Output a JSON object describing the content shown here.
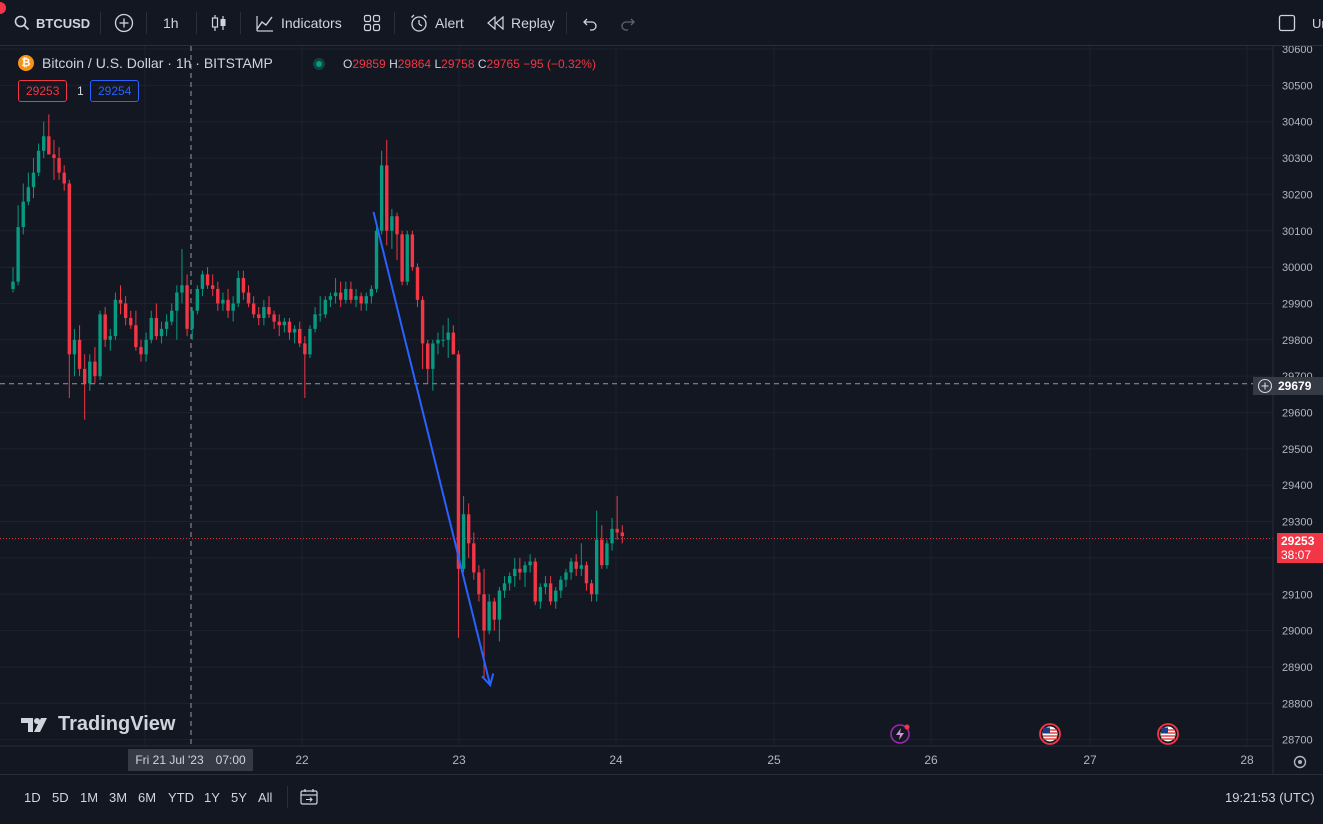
{
  "toolbar": {
    "symbol": "BTCUSD",
    "interval": "1h",
    "indicators_label": "Indicators",
    "alert_label": "Alert",
    "replay_label": "Replay",
    "right_cut_label": "Ur"
  },
  "legend": {
    "coin_glyph": "₿",
    "title": "Bitcoin / U.S. Dollar · 1h · BITSTAMP",
    "open_label": "O",
    "open": "29859",
    "high_label": "H",
    "high": "29864",
    "low_label": "L",
    "low": "29758",
    "close_label": "C",
    "close": "29765",
    "change": "−95 (−0.32%)",
    "sell_price": "29253",
    "spread": "1",
    "buy_price": "29254"
  },
  "price_axis": {
    "ticks": [
      "30600",
      "30500",
      "30400",
      "30300",
      "30200",
      "30100",
      "30000",
      "29900",
      "29800",
      "29700",
      "29600",
      "29500",
      "29400",
      "29300",
      "29200",
      "29100",
      "29000",
      "28900",
      "28800",
      "28700"
    ],
    "crosshair_price": "29679",
    "last_price": "29253",
    "countdown": "38:07"
  },
  "time_axis": {
    "ticks": [
      "22",
      "23",
      "24",
      "25",
      "26",
      "27",
      "28"
    ],
    "crosshair_date": "Fri 21 Jul '23",
    "crosshair_time": "07:00"
  },
  "brand": "TradingView",
  "bottom_bar": {
    "ranges": [
      "1D",
      "5D",
      "1M",
      "3M",
      "6M",
      "YTD",
      "1Y",
      "5Y",
      "All"
    ],
    "clock": "19:21:53 (UTC)"
  },
  "colors": {
    "up": "#089981",
    "down": "#f23645",
    "drawing": "#2962ff",
    "background": "#131722"
  },
  "chart_data": {
    "type": "candlestick",
    "title": "Bitcoin / U.S. Dollar · 1h · BITSTAMP",
    "ylim": [
      28680,
      30620
    ],
    "x_labels": [
      "22",
      "23",
      "24",
      "25",
      "26",
      "27",
      "28"
    ],
    "candles": [
      {
        "o": 29940,
        "h": 30000,
        "l": 29930,
        "c": 29960
      },
      {
        "o": 29960,
        "h": 30170,
        "l": 29950,
        "c": 30110
      },
      {
        "o": 30110,
        "h": 30230,
        "l": 30090,
        "c": 30180
      },
      {
        "o": 30180,
        "h": 30260,
        "l": 30170,
        "c": 30220
      },
      {
        "o": 30220,
        "h": 30300,
        "l": 30190,
        "c": 30260
      },
      {
        "o": 30260,
        "h": 30340,
        "l": 30250,
        "c": 30320
      },
      {
        "o": 30320,
        "h": 30400,
        "l": 30300,
        "c": 30360
      },
      {
        "o": 30360,
        "h": 30420,
        "l": 30310,
        "c": 30310
      },
      {
        "o": 30310,
        "h": 30350,
        "l": 30240,
        "c": 30300
      },
      {
        "o": 30300,
        "h": 30330,
        "l": 30240,
        "c": 30260
      },
      {
        "o": 30260,
        "h": 30280,
        "l": 30210,
        "c": 30230
      },
      {
        "o": 30230,
        "h": 30240,
        "l": 29640,
        "c": 29760
      },
      {
        "o": 29760,
        "h": 29830,
        "l": 29700,
        "c": 29800
      },
      {
        "o": 29800,
        "h": 29840,
        "l": 29700,
        "c": 29720
      },
      {
        "o": 29720,
        "h": 29760,
        "l": 29580,
        "c": 29680
      },
      {
        "o": 29680,
        "h": 29760,
        "l": 29660,
        "c": 29740
      },
      {
        "o": 29740,
        "h": 29780,
        "l": 29680,
        "c": 29700
      },
      {
        "o": 29700,
        "h": 29880,
        "l": 29690,
        "c": 29870
      },
      {
        "o": 29870,
        "h": 29890,
        "l": 29780,
        "c": 29800
      },
      {
        "o": 29800,
        "h": 29830,
        "l": 29770,
        "c": 29810
      },
      {
        "o": 29810,
        "h": 29930,
        "l": 29800,
        "c": 29910
      },
      {
        "o": 29910,
        "h": 29950,
        "l": 29870,
        "c": 29900
      },
      {
        "o": 29900,
        "h": 29920,
        "l": 29840,
        "c": 29860
      },
      {
        "o": 29860,
        "h": 29880,
        "l": 29830,
        "c": 29840
      },
      {
        "o": 29840,
        "h": 29880,
        "l": 29770,
        "c": 29780
      },
      {
        "o": 29780,
        "h": 29800,
        "l": 29740,
        "c": 29760
      },
      {
        "o": 29760,
        "h": 29820,
        "l": 29740,
        "c": 29800
      },
      {
        "o": 29800,
        "h": 29880,
        "l": 29790,
        "c": 29860
      },
      {
        "o": 29860,
        "h": 29900,
        "l": 29800,
        "c": 29810
      },
      {
        "o": 29810,
        "h": 29850,
        "l": 29790,
        "c": 29830
      },
      {
        "o": 29830,
        "h": 29870,
        "l": 29810,
        "c": 29850
      },
      {
        "o": 29850,
        "h": 29900,
        "l": 29840,
        "c": 29880
      },
      {
        "o": 29880,
        "h": 29950,
        "l": 29800,
        "c": 29930
      },
      {
        "o": 29930,
        "h": 30050,
        "l": 29900,
        "c": 29950
      },
      {
        "o": 29950,
        "h": 29980,
        "l": 29810,
        "c": 29830
      },
      {
        "o": 29830,
        "h": 29890,
        "l": 29800,
        "c": 29880
      },
      {
        "o": 29880,
        "h": 29950,
        "l": 29870,
        "c": 29940
      },
      {
        "o": 29940,
        "h": 29990,
        "l": 29920,
        "c": 29980
      },
      {
        "o": 29980,
        "h": 30000,
        "l": 29940,
        "c": 29950
      },
      {
        "o": 29950,
        "h": 29980,
        "l": 29920,
        "c": 29940
      },
      {
        "o": 29940,
        "h": 29960,
        "l": 29880,
        "c": 29900
      },
      {
        "o": 29900,
        "h": 29930,
        "l": 29880,
        "c": 29910
      },
      {
        "o": 29910,
        "h": 29940,
        "l": 29860,
        "c": 29880
      },
      {
        "o": 29880,
        "h": 29920,
        "l": 29850,
        "c": 29900
      },
      {
        "o": 29900,
        "h": 29990,
        "l": 29890,
        "c": 29970
      },
      {
        "o": 29970,
        "h": 29990,
        "l": 29910,
        "c": 29930
      },
      {
        "o": 29930,
        "h": 29950,
        "l": 29890,
        "c": 29900
      },
      {
        "o": 29900,
        "h": 29920,
        "l": 29860,
        "c": 29870
      },
      {
        "o": 29870,
        "h": 29890,
        "l": 29840,
        "c": 29860
      },
      {
        "o": 29860,
        "h": 29910,
        "l": 29840,
        "c": 29890
      },
      {
        "o": 29890,
        "h": 29920,
        "l": 29860,
        "c": 29870
      },
      {
        "o": 29870,
        "h": 29880,
        "l": 29830,
        "c": 29850
      },
      {
        "o": 29850,
        "h": 29870,
        "l": 29810,
        "c": 29840
      },
      {
        "o": 29840,
        "h": 29860,
        "l": 29820,
        "c": 29850
      },
      {
        "o": 29850,
        "h": 29860,
        "l": 29800,
        "c": 29820
      },
      {
        "o": 29820,
        "h": 29840,
        "l": 29790,
        "c": 29830
      },
      {
        "o": 29830,
        "h": 29850,
        "l": 29780,
        "c": 29790
      },
      {
        "o": 29790,
        "h": 29810,
        "l": 29640,
        "c": 29760
      },
      {
        "o": 29760,
        "h": 29840,
        "l": 29750,
        "c": 29830
      },
      {
        "o": 29830,
        "h": 29890,
        "l": 29820,
        "c": 29870
      },
      {
        "o": 29870,
        "h": 29920,
        "l": 29850,
        "c": 29870
      },
      {
        "o": 29870,
        "h": 29920,
        "l": 29860,
        "c": 29910
      },
      {
        "o": 29910,
        "h": 29930,
        "l": 29890,
        "c": 29920
      },
      {
        "o": 29920,
        "h": 29970,
        "l": 29900,
        "c": 29930
      },
      {
        "o": 29930,
        "h": 29960,
        "l": 29890,
        "c": 29910
      },
      {
        "o": 29910,
        "h": 29960,
        "l": 29900,
        "c": 29940
      },
      {
        "o": 29940,
        "h": 29960,
        "l": 29900,
        "c": 29910
      },
      {
        "o": 29910,
        "h": 29940,
        "l": 29890,
        "c": 29920
      },
      {
        "o": 29920,
        "h": 29930,
        "l": 29880,
        "c": 29900
      },
      {
        "o": 29900,
        "h": 29930,
        "l": 29880,
        "c": 29920
      },
      {
        "o": 29920,
        "h": 29950,
        "l": 29900,
        "c": 29940
      },
      {
        "o": 29940,
        "h": 30110,
        "l": 29930,
        "c": 30100
      },
      {
        "o": 30100,
        "h": 30320,
        "l": 30090,
        "c": 30280
      },
      {
        "o": 30280,
        "h": 30350,
        "l": 30060,
        "c": 30100
      },
      {
        "o": 30100,
        "h": 30160,
        "l": 30050,
        "c": 30140
      },
      {
        "o": 30140,
        "h": 30150,
        "l": 30020,
        "c": 30090
      },
      {
        "o": 30090,
        "h": 30100,
        "l": 29950,
        "c": 29960
      },
      {
        "o": 29960,
        "h": 30100,
        "l": 29950,
        "c": 30090
      },
      {
        "o": 30090,
        "h": 30100,
        "l": 29990,
        "c": 30000
      },
      {
        "o": 30000,
        "h": 30010,
        "l": 29890,
        "c": 29910
      },
      {
        "o": 29910,
        "h": 29920,
        "l": 29720,
        "c": 29790
      },
      {
        "o": 29790,
        "h": 29800,
        "l": 29680,
        "c": 29720
      },
      {
        "o": 29720,
        "h": 29800,
        "l": 29660,
        "c": 29790
      },
      {
        "o": 29790,
        "h": 29820,
        "l": 29760,
        "c": 29800
      },
      {
        "o": 29800,
        "h": 29840,
        "l": 29780,
        "c": 29800
      },
      {
        "o": 29800,
        "h": 29860,
        "l": 29750,
        "c": 29820
      },
      {
        "o": 29820,
        "h": 29840,
        "l": 29760,
        "c": 29760
      },
      {
        "o": 29760,
        "h": 29770,
        "l": 28980,
        "c": 29170
      },
      {
        "o": 29170,
        "h": 29370,
        "l": 29160,
        "c": 29320
      },
      {
        "o": 29320,
        "h": 29350,
        "l": 29200,
        "c": 29240
      },
      {
        "o": 29240,
        "h": 29270,
        "l": 29140,
        "c": 29160
      },
      {
        "o": 29160,
        "h": 29180,
        "l": 29080,
        "c": 29100
      },
      {
        "o": 29100,
        "h": 29170,
        "l": 28870,
        "c": 29000
      },
      {
        "o": 29000,
        "h": 29100,
        "l": 28990,
        "c": 29080
      },
      {
        "o": 29080,
        "h": 29090,
        "l": 29000,
        "c": 29030
      },
      {
        "o": 29030,
        "h": 29120,
        "l": 28970,
        "c": 29110
      },
      {
        "o": 29110,
        "h": 29150,
        "l": 29090,
        "c": 29130
      },
      {
        "o": 29130,
        "h": 29160,
        "l": 29110,
        "c": 29150
      },
      {
        "o": 29150,
        "h": 29200,
        "l": 29120,
        "c": 29170
      },
      {
        "o": 29170,
        "h": 29200,
        "l": 29140,
        "c": 29160
      },
      {
        "o": 29160,
        "h": 29190,
        "l": 29120,
        "c": 29180
      },
      {
        "o": 29180,
        "h": 29210,
        "l": 29160,
        "c": 29190
      },
      {
        "o": 29190,
        "h": 29200,
        "l": 29070,
        "c": 29080
      },
      {
        "o": 29080,
        "h": 29130,
        "l": 29060,
        "c": 29120
      },
      {
        "o": 29120,
        "h": 29150,
        "l": 29100,
        "c": 29130
      },
      {
        "o": 29130,
        "h": 29150,
        "l": 29070,
        "c": 29080
      },
      {
        "o": 29080,
        "h": 29120,
        "l": 29060,
        "c": 29110
      },
      {
        "o": 29110,
        "h": 29150,
        "l": 29090,
        "c": 29140
      },
      {
        "o": 29140,
        "h": 29170,
        "l": 29120,
        "c": 29160
      },
      {
        "o": 29160,
        "h": 29200,
        "l": 29140,
        "c": 29190
      },
      {
        "o": 29190,
        "h": 29210,
        "l": 29150,
        "c": 29170
      },
      {
        "o": 29170,
        "h": 29240,
        "l": 29150,
        "c": 29180
      },
      {
        "o": 29180,
        "h": 29190,
        "l": 29110,
        "c": 29130
      },
      {
        "o": 29130,
        "h": 29140,
        "l": 29080,
        "c": 29100
      },
      {
        "o": 29100,
        "h": 29330,
        "l": 29080,
        "c": 29250
      },
      {
        "o": 29250,
        "h": 29290,
        "l": 29170,
        "c": 29180
      },
      {
        "o": 29180,
        "h": 29250,
        "l": 29170,
        "c": 29240
      },
      {
        "o": 29240,
        "h": 29310,
        "l": 29220,
        "c": 29280
      },
      {
        "o": 29280,
        "h": 29370,
        "l": 29250,
        "c": 29270
      },
      {
        "o": 29270,
        "h": 29290,
        "l": 29240,
        "c": 29260
      }
    ],
    "trendline": {
      "from": {
        "candle": 71,
        "price": 30160
      },
      "to": {
        "candle": 93,
        "price": 28850
      }
    },
    "crosshair": {
      "candle": 23,
      "price": 29679
    },
    "last_price": 29253,
    "event_icons": [
      {
        "candle": 114,
        "icon": "lightning"
      },
      {
        "candle": 134,
        "icon": "us-flag"
      },
      {
        "candle": 154,
        "icon": "us-flag"
      }
    ]
  }
}
